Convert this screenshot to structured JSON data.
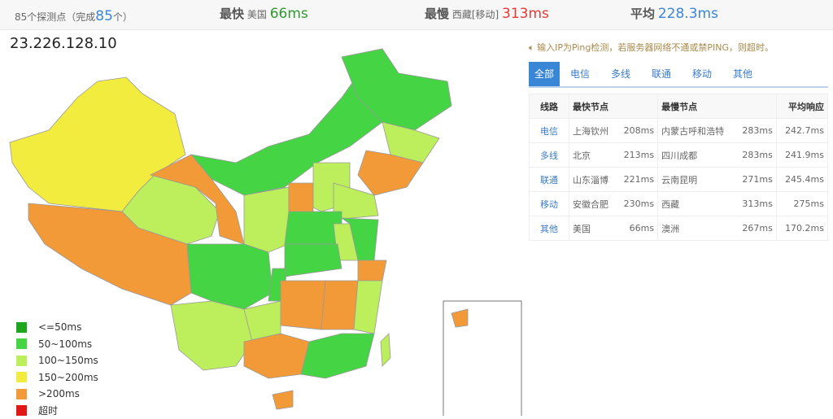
{
  "summary": {
    "count_prefix": "85个探测点（完成",
    "done": "85",
    "count_suffix": "个）",
    "fastest_label": "最快",
    "fastest_loc": "美国",
    "fastest_val": "66ms",
    "slowest_label": "最慢",
    "slowest_loc": "西藏[移动]",
    "slowest_val": "313ms",
    "avg_label": "平均",
    "avg_val": "228.3ms"
  },
  "ip": "23.226.128.10",
  "note": "输入IP为Ping检测，若服务器网络不通或禁PING，则超时。",
  "tabs": [
    "全部",
    "电信",
    "多线",
    "联通",
    "移动",
    "其他"
  ],
  "table": {
    "headers": [
      "线路",
      "最快节点",
      "最慢节点",
      "平均响应"
    ],
    "rows": [
      [
        "电信",
        "上海钦州",
        "208ms",
        "内蒙古呼和浩特",
        "283ms",
        "242.7ms"
      ],
      [
        "多线",
        "北京",
        "213ms",
        "四川成都",
        "283ms",
        "241.9ms"
      ],
      [
        "联通",
        "山东淄博",
        "221ms",
        "云南昆明",
        "271ms",
        "245.4ms"
      ],
      [
        "移动",
        "安徽合肥",
        "230ms",
        "西藏",
        "313ms",
        "275ms"
      ],
      [
        "其他",
        "美国",
        "66ms",
        "澳洲",
        "267ms",
        "170.2ms"
      ]
    ]
  },
  "legend": [
    {
      "label": "<=50ms",
      "color": "#1ea61e"
    },
    {
      "label": "50~100ms",
      "color": "#44d444"
    },
    {
      "label": "100~150ms",
      "color": "#bdee5c"
    },
    {
      "label": "150~200ms",
      "color": "#f2ec3e"
    },
    {
      "label": ">200ms",
      "color": "#f29a38"
    },
    {
      "label": "超时",
      "color": "#e01818"
    }
  ],
  "colors": {
    "accent": "#3a86d6",
    "fast": "#2e9a2e",
    "slow": "#e53935",
    "avg": "#3a86d6"
  }
}
